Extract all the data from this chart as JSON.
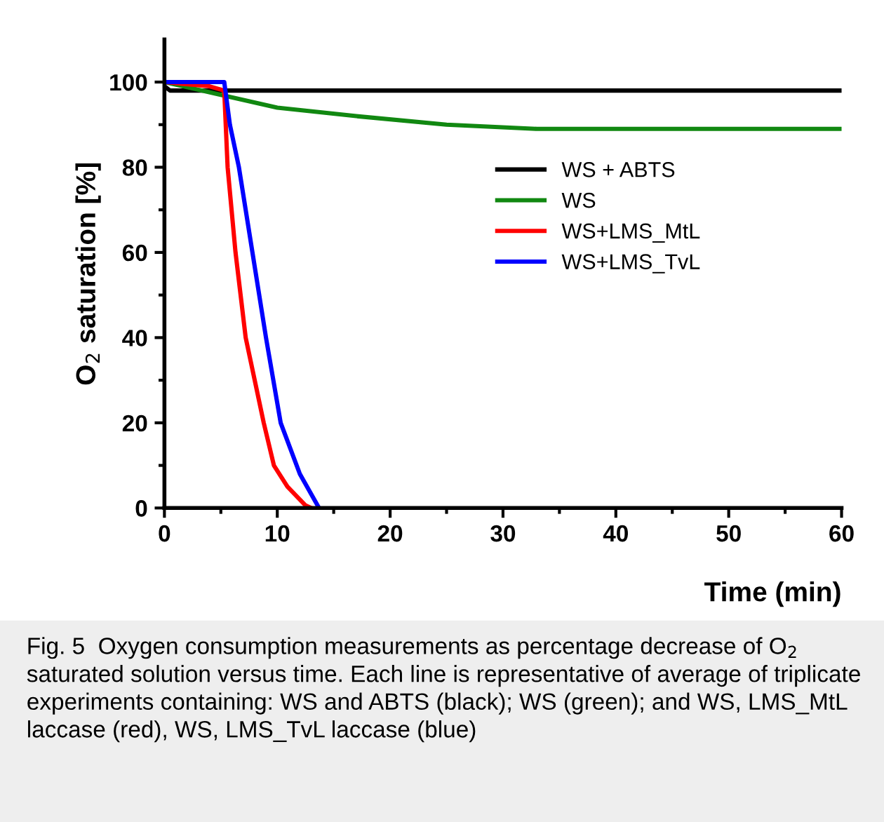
{
  "chart_data": {
    "type": "line",
    "xlabel": "Time (min)",
    "ylabel": "O$_{2}$ saturation [%]",
    "xlim": [
      0,
      60
    ],
    "ylim": [
      0,
      110
    ],
    "xticks": [
      0,
      {
        "value": 5,
        "label": null
      },
      10,
      {
        "value": 15,
        "label": null
      },
      20,
      {
        "value": 25,
        "label": null
      },
      30,
      {
        "value": 35,
        "label": null
      },
      40,
      {
        "value": 45,
        "label": null
      },
      50,
      {
        "value": 55,
        "label": null
      },
      60
    ],
    "yticks": [
      0,
      {
        "value": 10,
        "label": null
      },
      20,
      {
        "value": 30,
        "label": null
      },
      40,
      {
        "value": 50,
        "label": null
      },
      60,
      {
        "value": 70,
        "label": null
      },
      80,
      {
        "value": 90,
        "label": null
      },
      100
    ],
    "grid": false,
    "legend": "right",
    "marker": "none",
    "line_style": "solid",
    "series": [
      {
        "name": "WS + ABTS",
        "color": "#000000",
        "x": [
          0,
          0.5,
          60
        ],
        "values": [
          99,
          98,
          98
        ]
      },
      {
        "name": "WS",
        "color": "#118811",
        "x": [
          0,
          5,
          10,
          17,
          25,
          33,
          60
        ],
        "values": [
          100,
          97,
          94,
          92,
          90,
          89,
          89
        ]
      },
      {
        "name": "WS+LMS_MtL",
        "color": "#ff0000",
        "x": [
          0,
          4,
          5.3,
          5.6,
          6.3,
          7.2,
          8.8,
          9.7,
          10.9,
          12.5,
          13
        ],
        "values": [
          100,
          99,
          98,
          80,
          60,
          40,
          20,
          10,
          5,
          0.6,
          0
        ]
      },
      {
        "name": "WS+LMS_TvL",
        "color": "#0000ff",
        "x": [
          0,
          5.3,
          5.8,
          6.6,
          7.8,
          9.0,
          10.3,
          12,
          13.7
        ],
        "values": [
          100,
          100,
          90,
          80,
          60,
          40,
          20,
          8,
          0
        ]
      }
    ],
    "annotations": [
      "Fig. 5  Oxygen consumption measurements as percentage decrease of O$_{2}$ saturated solution versus time. Each line is representative of average of triplicate experiments containing: WS and ABTS (black); WS (green); and WS, LMS_MtL laccase (red), WS, LMS_TvL laccase (blue)"
    ]
  }
}
